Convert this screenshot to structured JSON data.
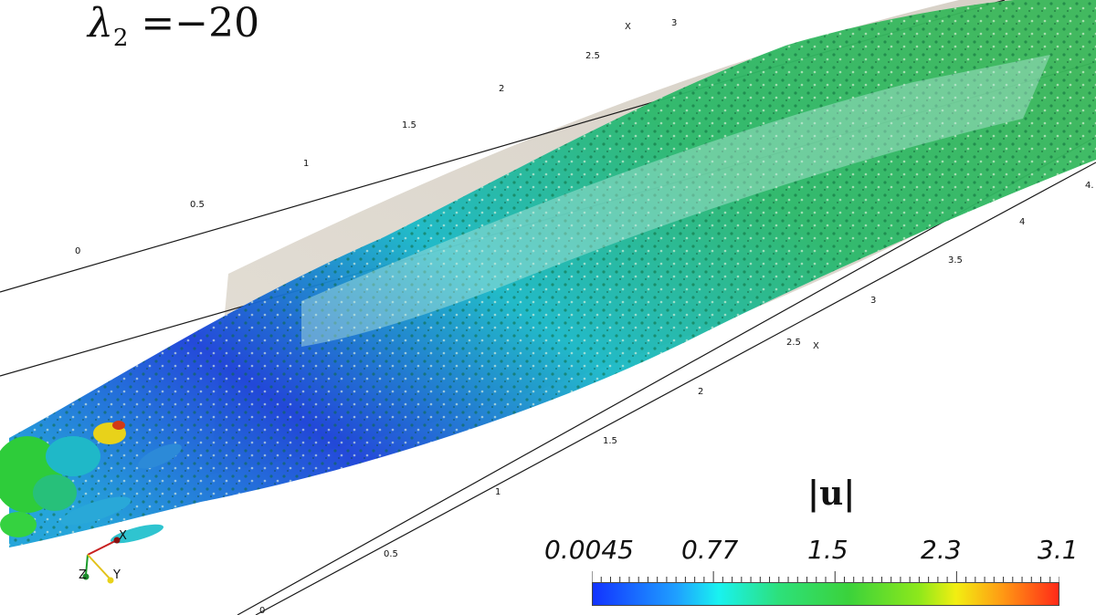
{
  "title": {
    "symbol": "λ",
    "subscript": "2",
    "rest": " =−20"
  },
  "colorbar": {
    "label": "|u|",
    "values": [
      "0.0045",
      "0.77",
      "1.5",
      "2.3",
      "3.1"
    ],
    "colors": [
      "#1233ff",
      "#19f2f0",
      "#3bd23b",
      "#f2ee12",
      "#ff2a18"
    ]
  },
  "upper_axis": {
    "name": "X",
    "ticks": [
      "0",
      "0.5",
      "1",
      "1.5",
      "2",
      "2.5",
      "3"
    ]
  },
  "lower_axis": {
    "name": "X",
    "ticks": [
      "0",
      "0.5",
      "1",
      "1.5",
      "2",
      "2.5",
      "3",
      "3.5",
      "4",
      "4."
    ]
  },
  "orientation": {
    "x": "X",
    "y": "Y",
    "z": "Z"
  }
}
